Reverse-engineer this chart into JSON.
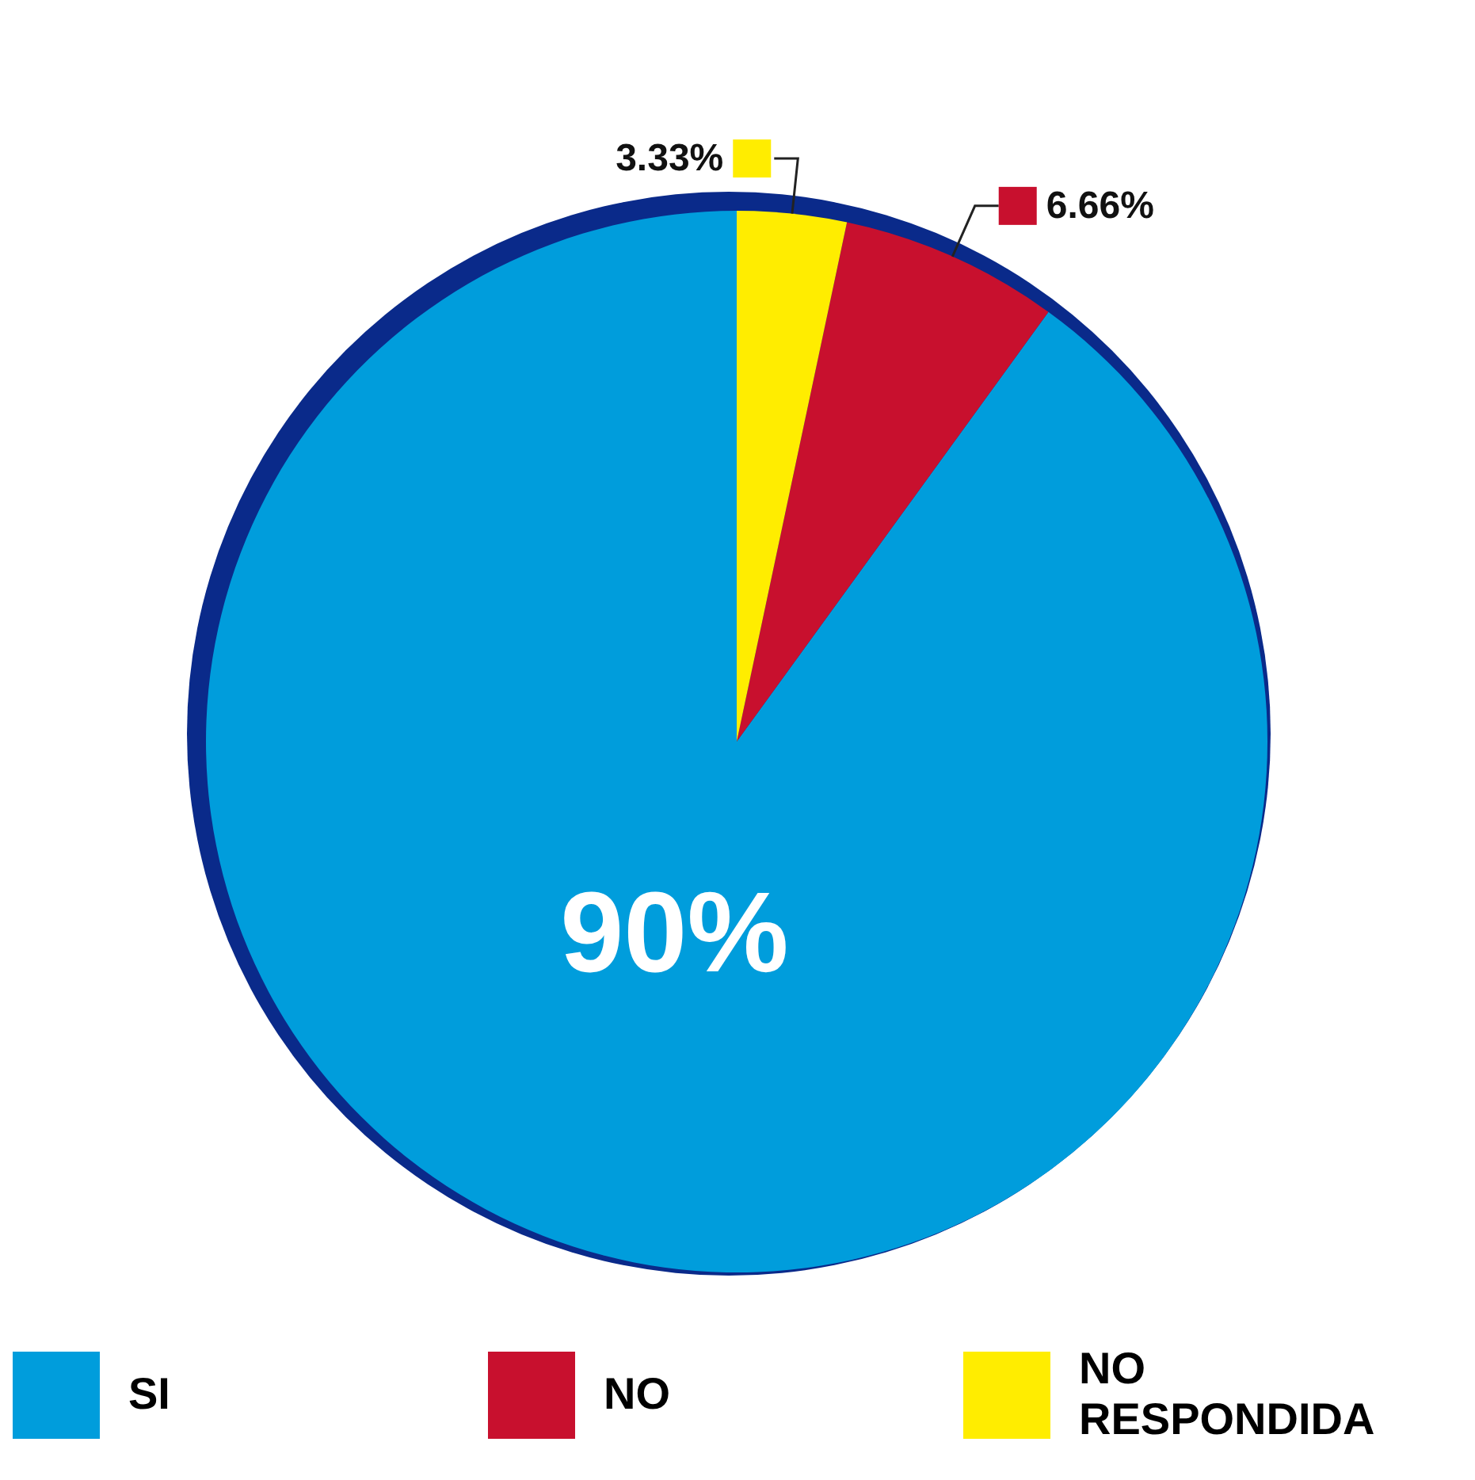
{
  "chart_data": {
    "type": "pie",
    "categories": [
      "SI",
      "NO",
      "NO RESPONDIDA"
    ],
    "values": [
      90,
      6.66,
      3.33
    ],
    "colors": [
      "#009ddc",
      "#c8102e",
      "#ffed00"
    ],
    "value_labels": [
      "90%",
      "6.66%",
      "3.33%"
    ],
    "legend": "bottom"
  }
}
